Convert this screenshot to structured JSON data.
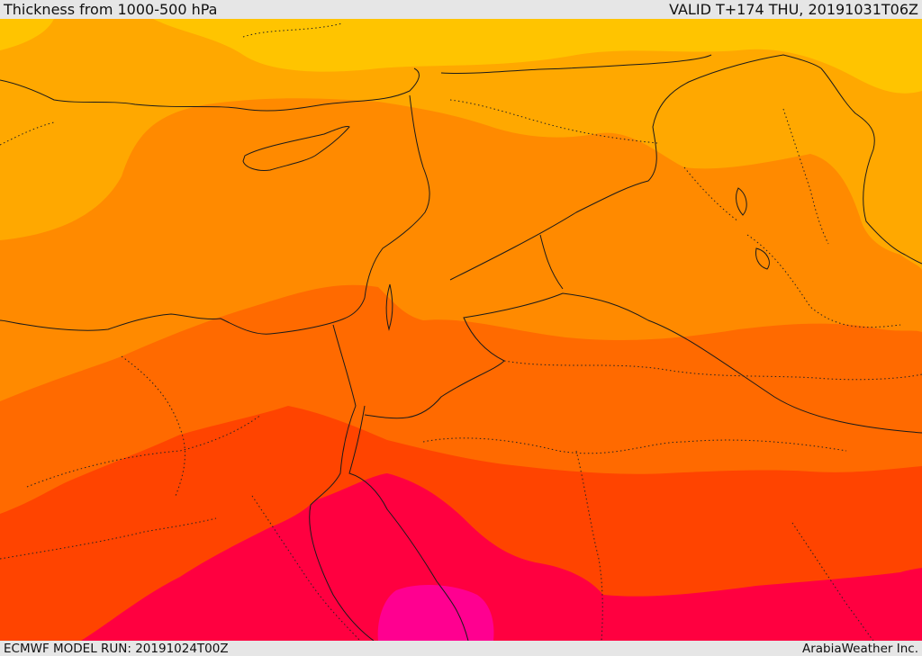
{
  "header": {
    "title": "Thickness from 1000-500 hPa",
    "valid": "VALID T+174 THU, 20191031T06Z"
  },
  "footer": {
    "model_run": "ECMWF MODEL RUN: 20191024T00Z",
    "credit": "ArabiaWeather Inc."
  },
  "palette": {
    "band_1": "#ffc400",
    "band_2": "#ffa800",
    "band_3": "#ff8a00",
    "band_4": "#ff6a00",
    "band_5": "#ff4400",
    "band_6": "#ff0040",
    "band_7": "#ff0090"
  }
}
